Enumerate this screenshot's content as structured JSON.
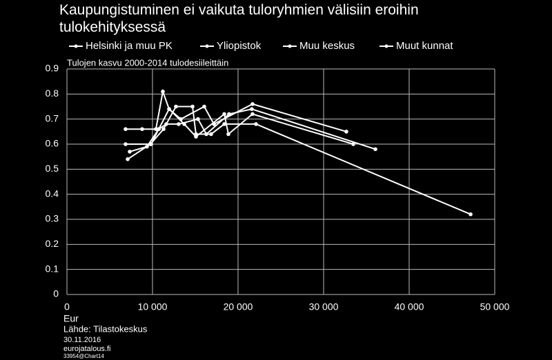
{
  "chart_data": {
    "type": "line",
    "title": "Kaupungistuminen ei vaikuta tuloryhmien välisiin eroihin tulokehityksessä",
    "subtitle": "Tulojen kasvu 2000-2014 tulodesiileittäin",
    "x_label": "Eur",
    "source": [
      "Lähde: Tilastokeskus",
      "30.11.2016",
      "eurojatalous.fi",
      "33954@Chart14"
    ],
    "xlim": [
      0,
      50000
    ],
    "xticks": [
      0,
      {
        "value": 10000,
        "label": "10 000"
      },
      {
        "value": 20000,
        "label": "20 000"
      },
      {
        "value": 30000,
        "label": "30 000"
      },
      {
        "value": 40000,
        "label": "40 000"
      },
      {
        "value": 50000,
        "label": "50 000"
      }
    ],
    "ylim": [
      0,
      0.9
    ],
    "yticks": [
      0,
      0.1,
      0.2,
      0.3,
      0.4,
      0.5,
      0.6,
      0.7,
      0.8,
      0.9
    ],
    "grid": true,
    "series": [
      {
        "name": "Helsinki ja muu PK",
        "color": "#ffffff",
        "x": [
          7100,
          9760,
          11290,
          12740,
          14680,
          15080,
          16850,
          18390,
          22100,
          47180
        ],
        "values": [
          0.54,
          0.6,
          0.66,
          0.75,
          0.75,
          0.64,
          0.64,
          0.68,
          0.68,
          0.32
        ]
      },
      {
        "name": "Yliopistok",
        "color": "#ffffff",
        "x": [
          6855,
          9840,
          10730,
          11610,
          13060,
          15320,
          16290,
          18950,
          21610,
          36050
        ],
        "values": [
          0.6,
          0.6,
          0.66,
          0.68,
          0.68,
          0.7,
          0.64,
          0.72,
          0.74,
          0.58
        ]
      },
      {
        "name": "Muu keskus",
        "color": "#ffffff",
        "x": [
          6855,
          8790,
          10400,
          11210,
          11940,
          13310,
          16050,
          17180,
          21690,
          32660
        ],
        "values": [
          0.66,
          0.66,
          0.66,
          0.81,
          0.74,
          0.7,
          0.75,
          0.68,
          0.76,
          0.65
        ]
      },
      {
        "name": "Muut kunnat",
        "color": "#ffffff",
        "x": [
          7340,
          9350,
          10730,
          11940,
          13710,
          15080,
          18390,
          18870,
          21690,
          33470
        ],
        "values": [
          0.57,
          0.59,
          0.66,
          0.74,
          0.68,
          0.63,
          0.72,
          0.64,
          0.72,
          0.6
        ]
      }
    ]
  }
}
